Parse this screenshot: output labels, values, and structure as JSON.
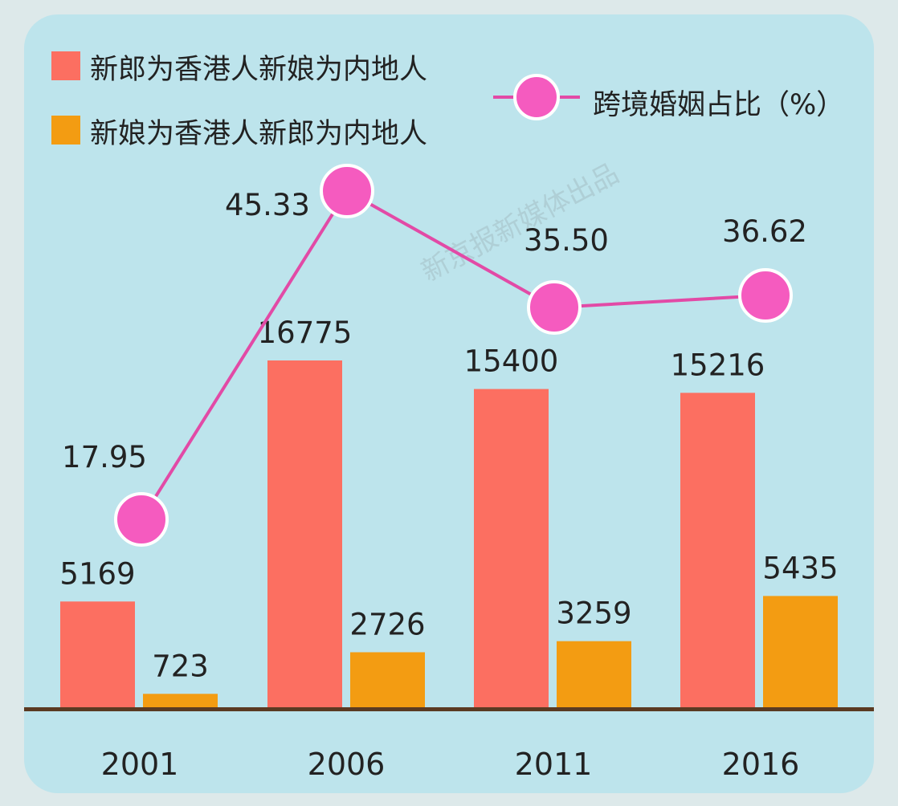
{
  "legend": {
    "series1": "新郎为香港人新娘为内地人",
    "series2": "新娘为香港人新郎为内地人",
    "line": "跨境婚姻占比（%）"
  },
  "watermark": "新京报新媒体出品",
  "colors": {
    "series1": "#fc6f61",
    "series2": "#f39c12",
    "line": "#e24aa6",
    "marker": "#f55bbf",
    "axis": "#5a3a22",
    "background": "#bde4ec"
  },
  "chart_data": {
    "type": "bar",
    "categories": [
      "2001",
      "2006",
      "2011",
      "2016"
    ],
    "series": [
      {
        "name": "新郎为香港人新娘为内地人",
        "values": [
          5169,
          16775,
          15400,
          15216
        ]
      },
      {
        "name": "新娘为香港人新郎为内地人",
        "values": [
          723,
          2726,
          3259,
          5435
        ]
      }
    ],
    "line_series": {
      "name": "跨境婚姻占比（%）",
      "values": [
        17.95,
        45.33,
        35.5,
        36.62
      ],
      "labels": [
        "17.95",
        "45.33",
        "35.50",
        "36.62"
      ]
    },
    "ylim": [
      0,
      19000
    ],
    "line_ylim": [
      0,
      60
    ],
    "legend_position": "top"
  }
}
